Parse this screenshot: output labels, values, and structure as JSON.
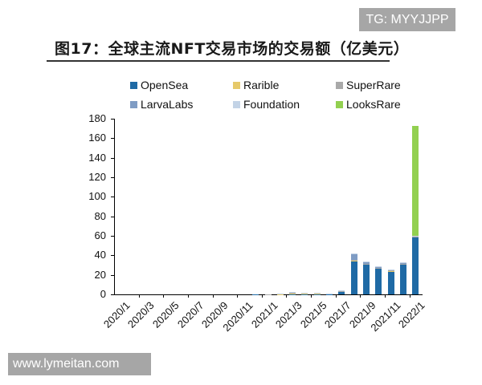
{
  "watermark_top": "TG: MYYJJPP",
  "watermark_bottom": "www.lymeitan.com",
  "title": "图17：全球主流NFT交易市场的交易额（亿美元）",
  "legend": [
    {
      "name": "OpenSea",
      "color": "#1f6aa5"
    },
    {
      "name": "Rarible",
      "color": "#e6c96a"
    },
    {
      "name": "SuperRare",
      "color": "#a9a9a9"
    },
    {
      "name": "LarvaLabs",
      "color": "#7f9cc4"
    },
    {
      "name": "Foundation",
      "color": "#c3d3e6"
    },
    {
      "name": "LooksRare",
      "color": "#92d050"
    }
  ],
  "yticks": [
    "0",
    "20",
    "40",
    "60",
    "80",
    "100",
    "120",
    "140",
    "160",
    "180"
  ],
  "xticks": [
    "2020/1",
    "2020/3",
    "2020/5",
    "2020/7",
    "2020/9",
    "2020/11",
    "2021/1",
    "2021/3",
    "2021/5",
    "2021/7",
    "2021/9",
    "2021/11",
    "2022/1"
  ],
  "chart_data": {
    "type": "bar",
    "stacked": true,
    "title": "图17：全球主流NFT交易市场的交易额（亿美元）",
    "xlabel": "",
    "ylabel": "亿美元",
    "ylim": [
      0,
      180
    ],
    "grid": false,
    "legend_position": "top",
    "categories": [
      "2020/1",
      "2020/2",
      "2020/3",
      "2020/4",
      "2020/5",
      "2020/6",
      "2020/7",
      "2020/8",
      "2020/9",
      "2020/10",
      "2020/11",
      "2020/12",
      "2021/1",
      "2021/2",
      "2021/3",
      "2021/4",
      "2021/5",
      "2021/6",
      "2021/7",
      "2021/8",
      "2021/9",
      "2021/10",
      "2021/11",
      "2021/12",
      "2022/1"
    ],
    "series": [
      {
        "name": "OpenSea",
        "color": "#1f6aa5",
        "values": [
          0,
          0,
          0,
          0,
          0,
          0,
          0,
          0,
          0,
          0,
          0,
          0.1,
          0.1,
          0.2,
          0.4,
          0.3,
          0.3,
          0.4,
          3.2,
          34.5,
          31,
          27,
          24,
          31,
          59
        ]
      },
      {
        "name": "Rarible",
        "color": "#e6c96a",
        "values": [
          0,
          0,
          0,
          0,
          0,
          0,
          0,
          0,
          0,
          0,
          0,
          0,
          0,
          0.1,
          0.3,
          0.2,
          0.2,
          0.1,
          0.1,
          0.2,
          0.2,
          0.1,
          0.1,
          0.1,
          0.1
        ]
      },
      {
        "name": "SuperRare",
        "color": "#a9a9a9",
        "values": [
          0,
          0,
          0,
          0,
          0,
          0,
          0,
          0,
          0,
          0,
          0,
          0,
          0.1,
          0.6,
          1.5,
          0.8,
          0.8,
          0.3,
          0.2,
          0.3,
          0.2,
          0.2,
          0.2,
          0.2,
          0.2
        ]
      },
      {
        "name": "LarvaLabs",
        "color": "#7f9cc4",
        "values": [
          0,
          0,
          0,
          0,
          0,
          0,
          0,
          0,
          0,
          0,
          0,
          0,
          0,
          0.1,
          0.1,
          0.1,
          0.1,
          0.1,
          0.3,
          6.5,
          1.5,
          1.0,
          1.0,
          1.3,
          0.5
        ]
      },
      {
        "name": "Foundation",
        "color": "#c3d3e6",
        "values": [
          0,
          0,
          0,
          0,
          0,
          0,
          0,
          0,
          0,
          0,
          0,
          0,
          0,
          0.2,
          0.2,
          0.2,
          0.2,
          0.2,
          0.3,
          0.5,
          0.9,
          0.5,
          0.5,
          0.5,
          0.4
        ]
      },
      {
        "name": "LooksRare",
        "color": "#92d050",
        "values": [
          0,
          0,
          0,
          0,
          0,
          0,
          0,
          0,
          0,
          0,
          0,
          0,
          0,
          0,
          0,
          0,
          0,
          0,
          0,
          0,
          0,
          0,
          0,
          0,
          112
        ]
      }
    ]
  }
}
